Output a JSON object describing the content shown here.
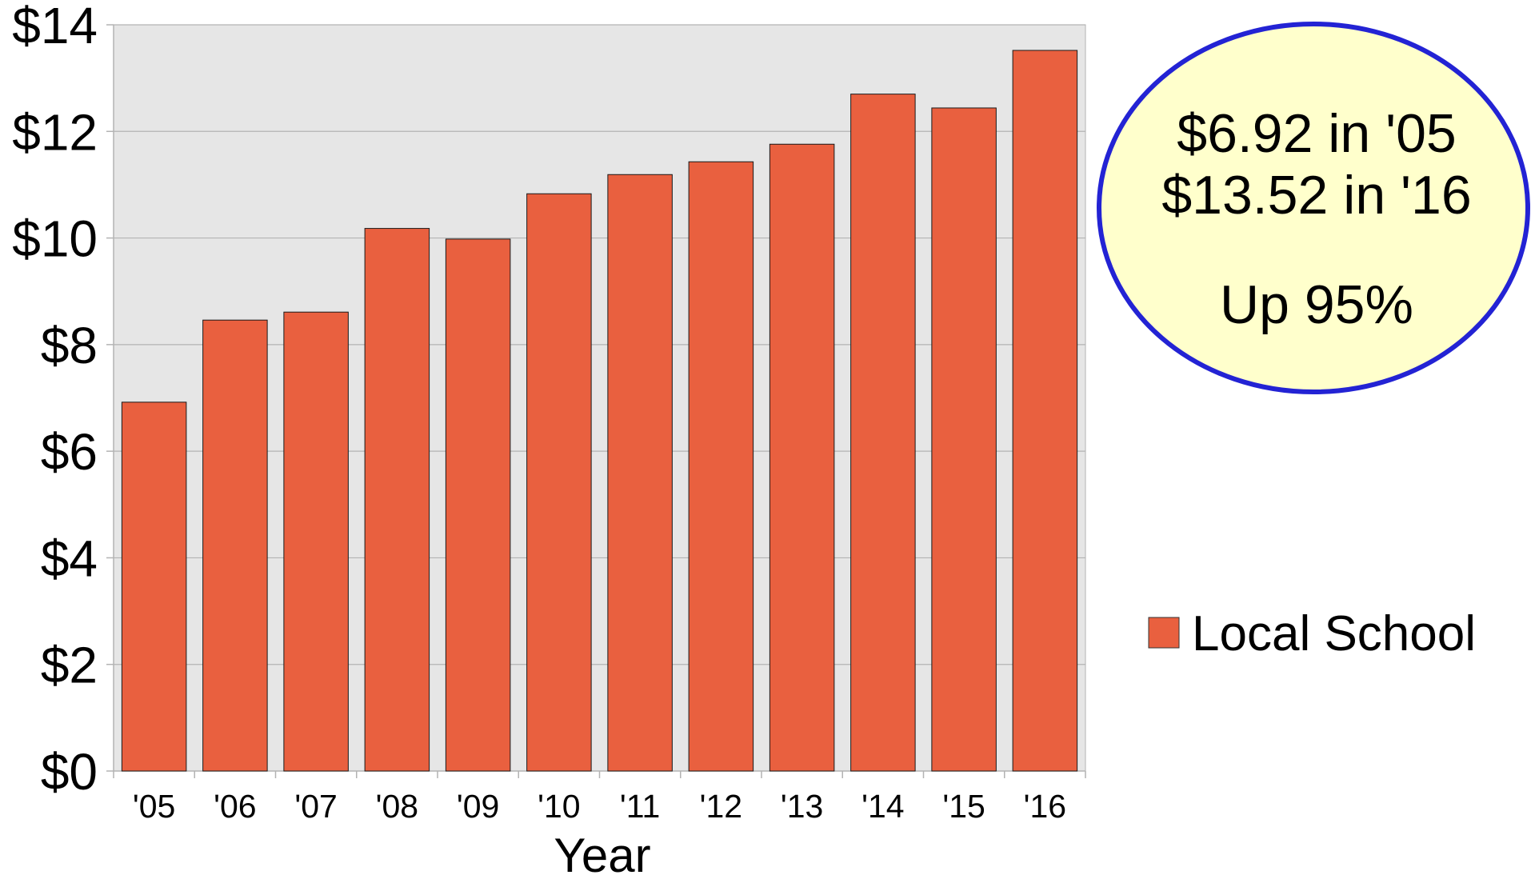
{
  "chart_data": {
    "type": "bar",
    "categories": [
      "'05",
      "'06",
      "'07",
      "'08",
      "'09",
      "'10",
      "'11",
      "'12",
      "'13",
      "'14",
      "'15",
      "'16"
    ],
    "series": [
      {
        "name": "Local School",
        "values": [
          6.92,
          8.46,
          8.61,
          10.18,
          9.98,
          10.83,
          11.19,
          11.43,
          11.76,
          12.7,
          12.44,
          13.52
        ]
      }
    ],
    "xlabel": "Year",
    "ylim": [
      0,
      14
    ],
    "ytick_values": [
      0,
      2,
      4,
      6,
      8,
      10,
      12,
      14
    ],
    "ytick_labels": [
      "$0",
      "$2",
      "$4",
      "$6",
      "$8",
      "$10",
      "$12",
      "$14"
    ],
    "grid": true,
    "legend": "right"
  },
  "callout": {
    "line1": "$6.92 in '05",
    "line2": "$13.52 in '16",
    "line3": "Up 95%"
  },
  "colors": {
    "bar": "#e9603f",
    "bar_outline": "#1a1a1a",
    "plot_background": "#e6e6e6",
    "gridline": "#b3b3b3",
    "callout_fill": "#ffffcc",
    "callout_outline": "#2323d4"
  }
}
